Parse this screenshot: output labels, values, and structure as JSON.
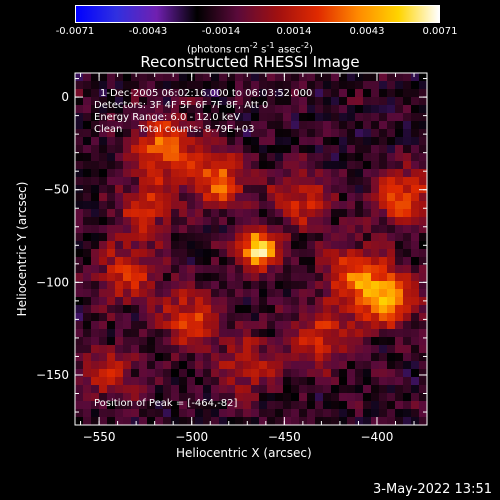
{
  "title": "Reconstructed RHESSI Image",
  "colorbar": {
    "ticks": [
      "-0.0071",
      "-0.0043",
      "-0.0014",
      "0.0014",
      "0.0043",
      "0.0071"
    ],
    "units_prefix": "(photons cm",
    "units_exp1": "-2",
    "units_mid": " s",
    "units_exp2": "-1",
    "units_suffix": " asec",
    "units_exp3": "-2",
    "units_close": ")",
    "colormap": [
      "#0000ff",
      "#3030e0",
      "#7020b0",
      "#000000",
      "#5a0a3a",
      "#a01010",
      "#e02a00",
      "#ff8a00",
      "#ffd400",
      "#ffffff"
    ]
  },
  "info": {
    "line1": "1-Dec-2005 06:02:16.000 to 06:03:52.000",
    "line2": "Detectors: 3F 4F 5F 6F 7F 8F, Att 0",
    "line3": "Energy Range: 6.0 - 12.0 keV",
    "line4": "Clean     Total counts: 8.79E+03",
    "peak": "Position of Peak = [-464,-82]"
  },
  "footer": "3-May-2022 13:51",
  "chart_data": {
    "type": "heatmap",
    "title": "Reconstructed RHESSI Image",
    "xlabel": "Heliocentric X (arcsec)",
    "ylabel": "Heliocentric Y (arcsec)",
    "xlim": [
      -563,
      -373
    ],
    "ylim": [
      -177,
      13
    ],
    "xticks": [
      -550,
      -500,
      -450,
      -400
    ],
    "yticks": [
      0,
      -50,
      -100,
      -150
    ],
    "colorbar_range": [
      -0.0071,
      0.0071
    ],
    "peak": {
      "x": -464,
      "y": -82,
      "value": 0.0071
    },
    "hotspots": [
      {
        "x": -464,
        "y": -82,
        "value": 0.0071
      },
      {
        "x": -515,
        "y": -27,
        "value": 0.0043
      },
      {
        "x": -485,
        "y": -45,
        "value": 0.004
      },
      {
        "x": -395,
        "y": -108,
        "value": 0.0055
      },
      {
        "x": -385,
        "y": -55,
        "value": 0.004
      },
      {
        "x": -415,
        "y": -95,
        "value": 0.0035
      },
      {
        "x": -535,
        "y": -95,
        "value": 0.0032
      },
      {
        "x": -500,
        "y": -120,
        "value": 0.0038
      },
      {
        "x": -430,
        "y": -130,
        "value": 0.0033
      },
      {
        "x": -470,
        "y": -145,
        "value": 0.0028
      },
      {
        "x": -545,
        "y": -150,
        "value": 0.0025
      },
      {
        "x": -440,
        "y": -55,
        "value": 0.003
      },
      {
        "x": -525,
        "y": -60,
        "value": 0.003
      }
    ]
  }
}
